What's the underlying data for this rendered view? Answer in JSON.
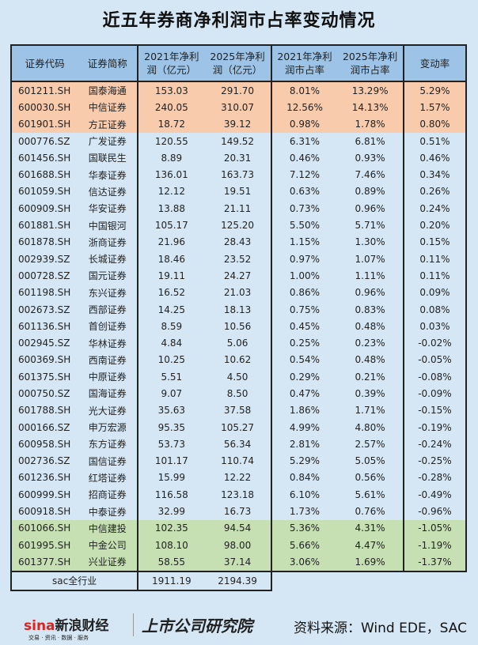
{
  "title": "近五年券商净利润市占率变动情况",
  "chart_data": {
    "type": "table",
    "columns": [
      "证券代码",
      "证券简称",
      "2021年净利润（亿元）",
      "2025年净利润（亿元）",
      "2021年净利润市占率",
      "2025年净利润市占率",
      "变动率"
    ],
    "rows": [
      [
        "601211.SH",
        "国泰海通",
        "153.03",
        "291.70",
        "8.01%",
        "13.29%",
        "5.29%",
        "o"
      ],
      [
        "600030.SH",
        "中信证券",
        "240.05",
        "310.07",
        "12.56%",
        "14.13%",
        "1.57%",
        "o"
      ],
      [
        "601901.SH",
        "方正证券",
        "18.72",
        "39.12",
        "0.98%",
        "1.78%",
        "0.80%",
        "o"
      ],
      [
        "000776.SZ",
        "广发证券",
        "120.55",
        "149.52",
        "6.31%",
        "6.81%",
        "0.51%",
        "b"
      ],
      [
        "601456.SH",
        "国联民生",
        "8.89",
        "20.31",
        "0.46%",
        "0.93%",
        "0.46%",
        "b"
      ],
      [
        "601688.SH",
        "华泰证券",
        "136.01",
        "163.73",
        "7.12%",
        "7.46%",
        "0.34%",
        "b"
      ],
      [
        "601059.SH",
        "信达证券",
        "12.12",
        "19.51",
        "0.63%",
        "0.89%",
        "0.26%",
        "b"
      ],
      [
        "600909.SH",
        "华安证券",
        "13.88",
        "21.11",
        "0.73%",
        "0.96%",
        "0.24%",
        "b"
      ],
      [
        "601881.SH",
        "中国银河",
        "105.17",
        "125.20",
        "5.50%",
        "5.71%",
        "0.20%",
        "b"
      ],
      [
        "601878.SH",
        "浙商证券",
        "21.96",
        "28.43",
        "1.15%",
        "1.30%",
        "0.15%",
        "b"
      ],
      [
        "002939.SZ",
        "长城证券",
        "18.46",
        "23.52",
        "0.97%",
        "1.07%",
        "0.11%",
        "b"
      ],
      [
        "000728.SZ",
        "国元证券",
        "19.11",
        "24.27",
        "1.00%",
        "1.11%",
        "0.11%",
        "b"
      ],
      [
        "601198.SH",
        "东兴证券",
        "16.52",
        "21.03",
        "0.86%",
        "0.96%",
        "0.09%",
        "b"
      ],
      [
        "002673.SZ",
        "西部证券",
        "14.25",
        "18.13",
        "0.75%",
        "0.83%",
        "0.08%",
        "b"
      ],
      [
        "601136.SH",
        "首创证券",
        "8.59",
        "10.56",
        "0.45%",
        "0.48%",
        "0.03%",
        "b"
      ],
      [
        "002945.SZ",
        "华林证券",
        "4.84",
        "5.06",
        "0.25%",
        "0.23%",
        "-0.02%",
        "b"
      ],
      [
        "600369.SH",
        "西南证券",
        "10.25",
        "10.62",
        "0.54%",
        "0.48%",
        "-0.05%",
        "b"
      ],
      [
        "601375.SH",
        "中原证券",
        "5.51",
        "4.50",
        "0.29%",
        "0.21%",
        "-0.08%",
        "b"
      ],
      [
        "000750.SZ",
        "国海证券",
        "9.07",
        "8.50",
        "0.47%",
        "0.39%",
        "-0.09%",
        "b"
      ],
      [
        "601788.SH",
        "光大证券",
        "35.63",
        "37.58",
        "1.86%",
        "1.71%",
        "-0.15%",
        "b"
      ],
      [
        "000166.SZ",
        "申万宏源",
        "95.35",
        "105.27",
        "4.99%",
        "4.80%",
        "-0.19%",
        "b"
      ],
      [
        "600958.SH",
        "东方证券",
        "53.73",
        "56.34",
        "2.81%",
        "2.57%",
        "-0.24%",
        "b"
      ],
      [
        "002736.SZ",
        "国信证券",
        "101.17",
        "110.74",
        "5.29%",
        "5.05%",
        "-0.25%",
        "b"
      ],
      [
        "601236.SH",
        "红塔证券",
        "15.99",
        "12.22",
        "0.84%",
        "0.56%",
        "-0.28%",
        "b"
      ],
      [
        "600999.SH",
        "招商证券",
        "116.58",
        "123.18",
        "6.10%",
        "5.61%",
        "-0.49%",
        "b"
      ],
      [
        "600918.SH",
        "中泰证券",
        "32.99",
        "16.73",
        "1.73%",
        "0.76%",
        "-0.96%",
        "b"
      ],
      [
        "601066.SH",
        "中信建投",
        "102.35",
        "94.54",
        "5.36%",
        "4.31%",
        "-1.05%",
        "g"
      ],
      [
        "601995.SH",
        "中金公司",
        "108.10",
        "98.00",
        "5.66%",
        "4.47%",
        "-1.19%",
        "g"
      ],
      [
        "601377.SH",
        "兴业证券",
        "58.55",
        "37.14",
        "3.06%",
        "1.69%",
        "-1.37%",
        "g"
      ]
    ],
    "total": {
      "label": "sac全行业",
      "v2021": "1911.19",
      "v2025": "2194.39"
    },
    "row_colors": {
      "o": "#f8cbad",
      "b": "#d5e7f5",
      "g": "#c6e0b4"
    }
  },
  "footer": {
    "sina": "sina",
    "sina_cn": "新浪财经",
    "sina_sub": "交易 · 资讯 · 数据 · 服务",
    "institute": "上市公司研究院",
    "source": "资料来源：Wind EDE，SAC"
  }
}
